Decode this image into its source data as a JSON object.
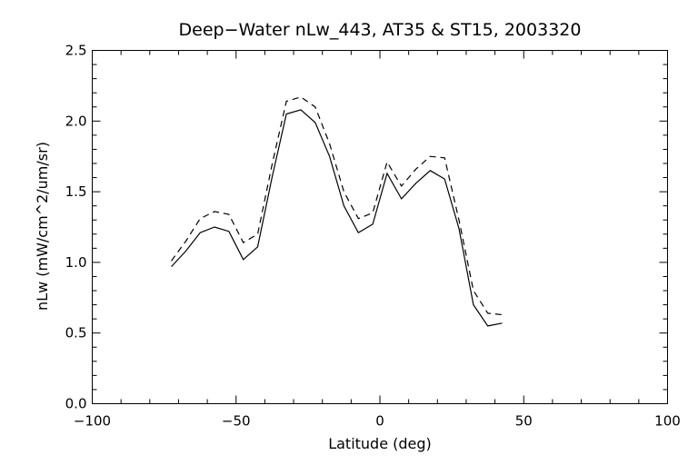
{
  "chart_data": {
    "type": "line",
    "title": "Deep−Water nLw_443, AT35 & ST15, 2003320",
    "xlabel": "Latitude (deg)",
    "ylabel": "nLw (mW/cm^2/um/sr)",
    "xlim": [
      -100,
      100
    ],
    "ylim": [
      0.0,
      2.5
    ],
    "x_major_ticks": [
      -100,
      -50,
      0,
      50,
      100
    ],
    "x_tick_labels": [
      "−100",
      "−50",
      "0",
      "50",
      "100"
    ],
    "x_minor_step": 10,
    "y_major_ticks": [
      0.0,
      0.5,
      1.0,
      1.5,
      2.0,
      2.5
    ],
    "y_tick_labels": [
      "0.0",
      "0.5",
      "1.0",
      "1.5",
      "2.0",
      "2.5"
    ],
    "y_minor_step": 0.1,
    "grid": false,
    "series": [
      {
        "style": "solid",
        "color": "#000000",
        "x": [
          -72.5,
          -67.5,
          -62.5,
          -57.5,
          -52.5,
          -47.5,
          -42.5,
          -37.5,
          -32.5,
          -27.5,
          -22.5,
          -17.5,
          -12.5,
          -7.5,
          -2.5,
          2.5,
          7.5,
          12.5,
          17.5,
          22.5,
          27.5,
          32.5,
          37.5,
          42.5
        ],
        "values": [
          0.97,
          1.08,
          1.21,
          1.25,
          1.22,
          1.02,
          1.11,
          1.6,
          2.05,
          2.08,
          1.99,
          1.75,
          1.4,
          1.21,
          1.27,
          1.63,
          1.45,
          1.56,
          1.65,
          1.59,
          1.24,
          0.7,
          0.55,
          0.57
        ]
      },
      {
        "style": "dashed",
        "color": "#000000",
        "x": [
          -72.5,
          -67.5,
          -62.5,
          -57.5,
          -52.5,
          -47.5,
          -42.5,
          -37.5,
          -32.5,
          -27.5,
          -22.5,
          -17.5,
          -12.5,
          -7.5,
          -2.5,
          2.5,
          7.5,
          12.5,
          17.5,
          22.5,
          27.5,
          32.5,
          37.5,
          42.5
        ],
        "values": [
          1.01,
          1.15,
          1.31,
          1.36,
          1.34,
          1.14,
          1.2,
          1.69,
          2.14,
          2.17,
          2.1,
          1.84,
          1.5,
          1.31,
          1.35,
          1.71,
          1.54,
          1.66,
          1.75,
          1.74,
          1.3,
          0.8,
          0.64,
          0.63
        ]
      }
    ]
  }
}
